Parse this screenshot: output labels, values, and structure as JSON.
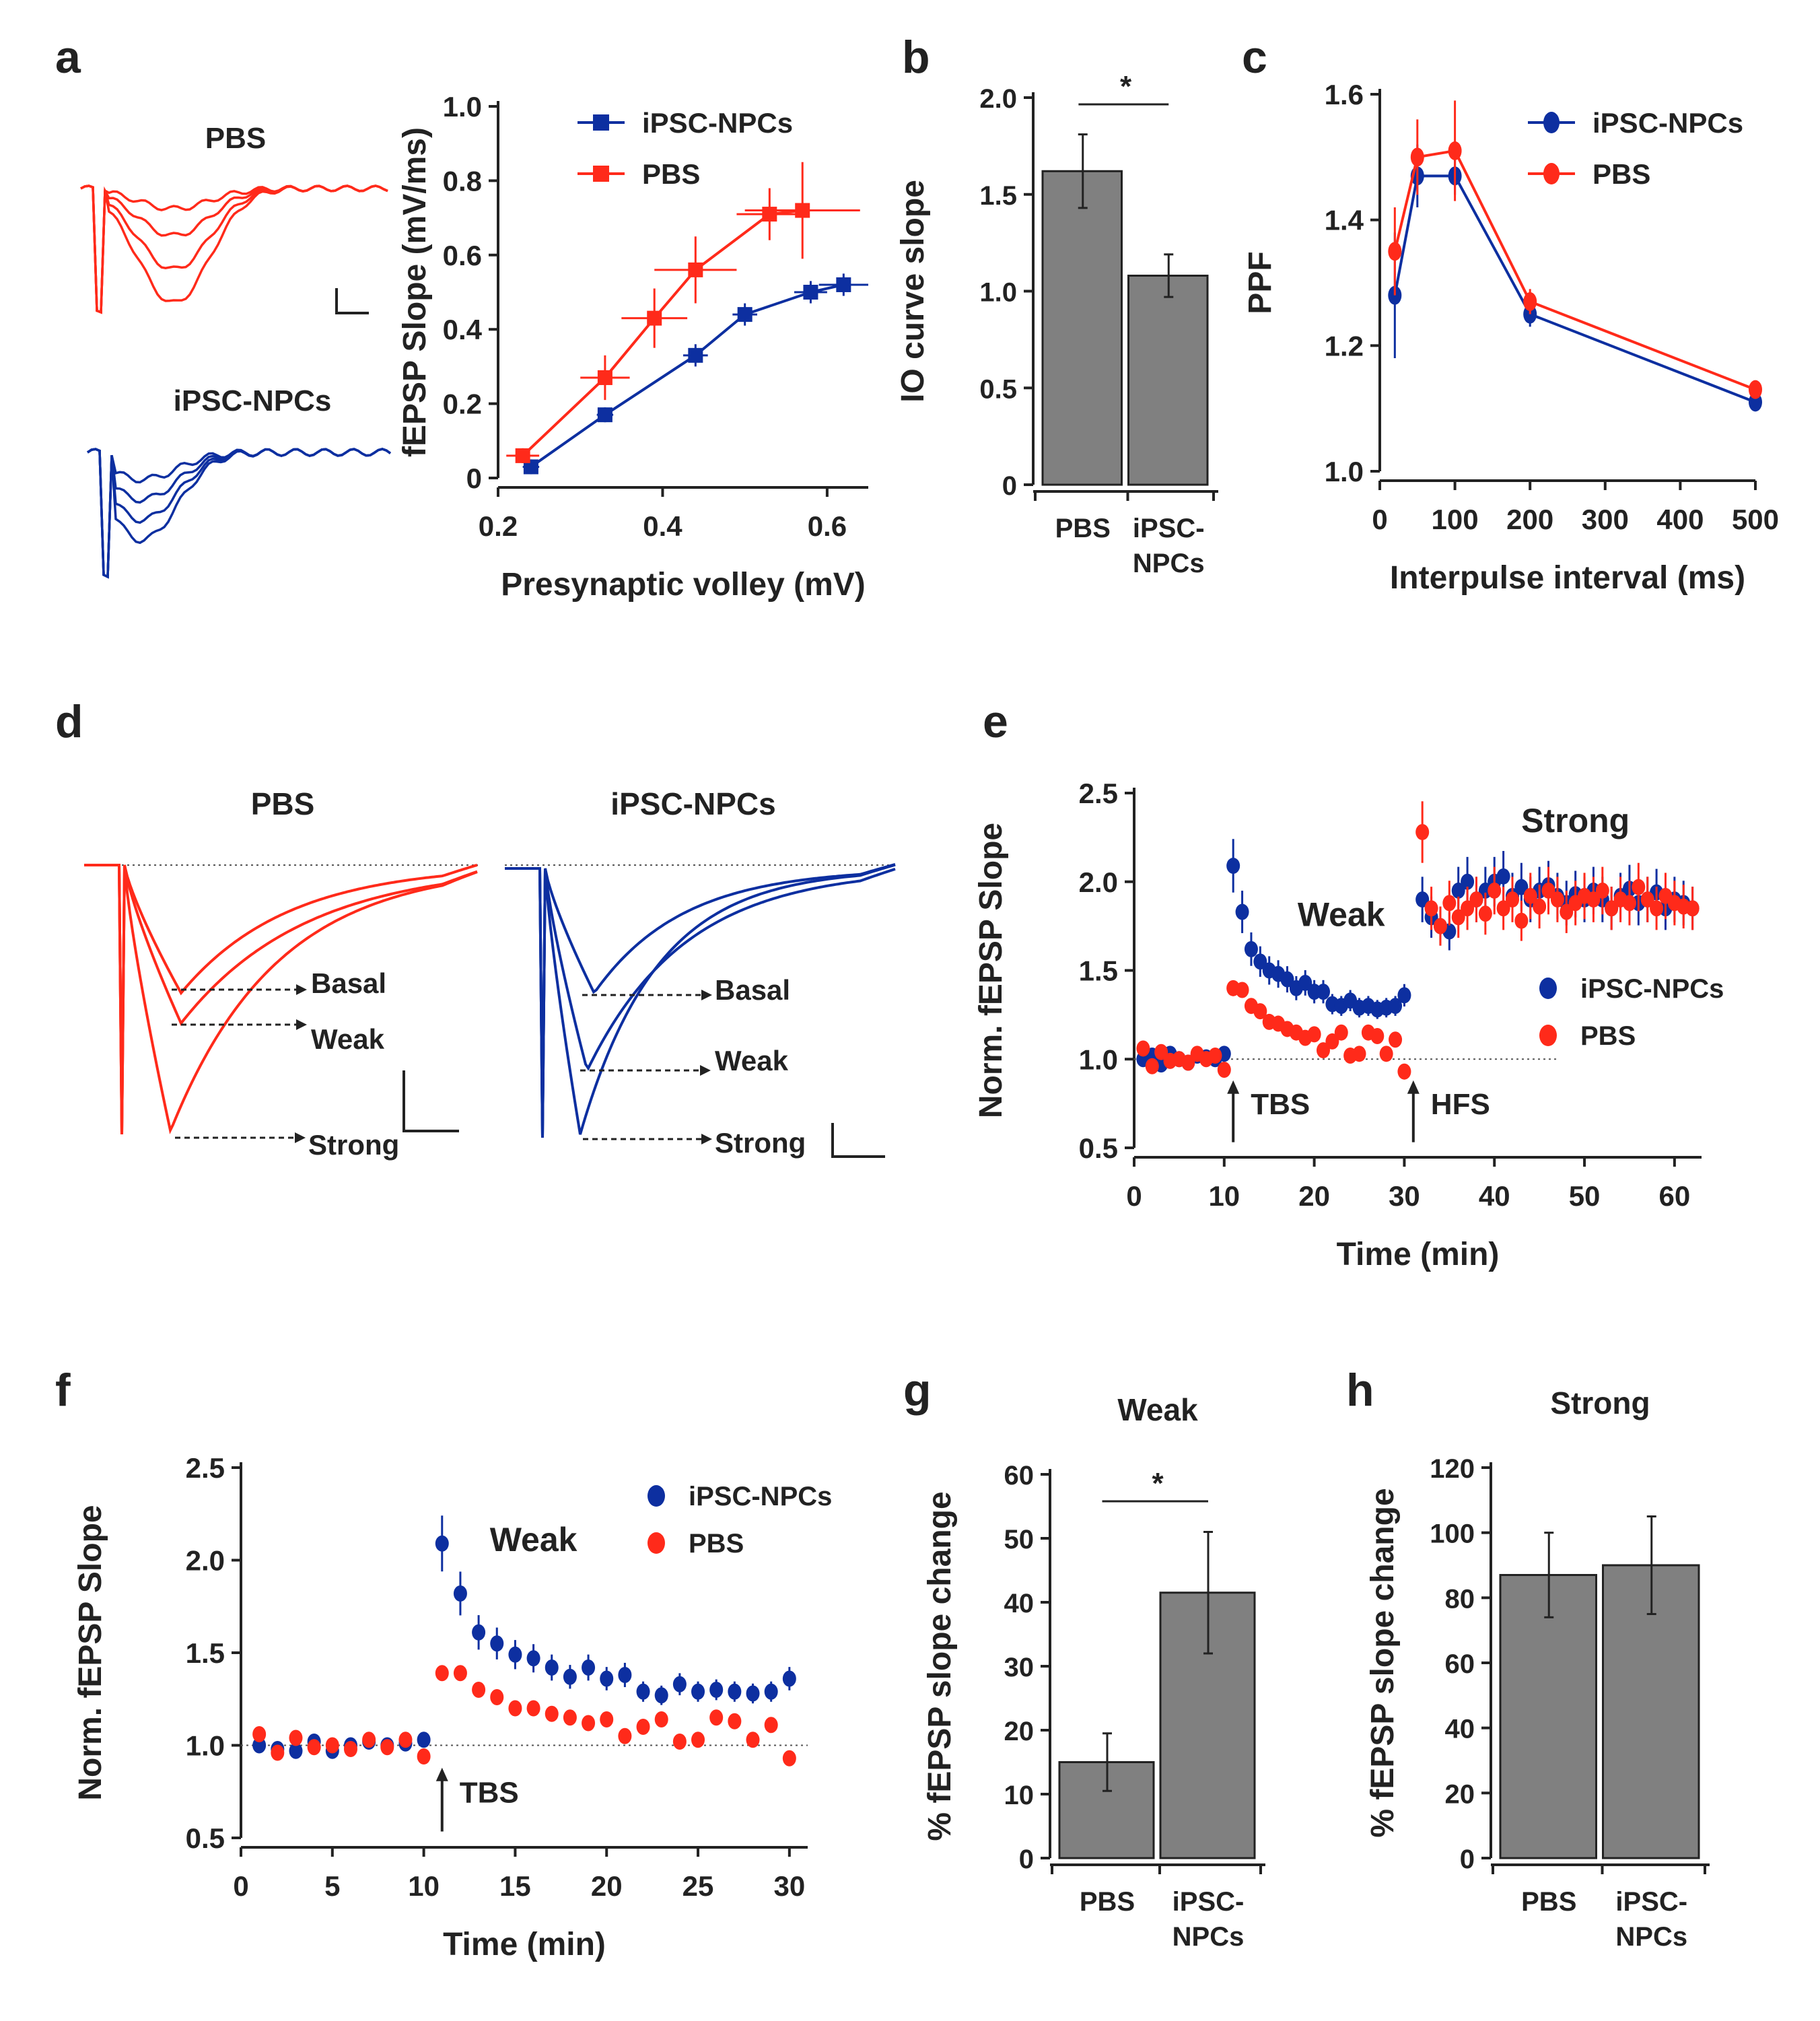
{
  "colors": {
    "pbs": "#ff2a1a",
    "ipsc": "#0d2fa0",
    "bar": "#808080",
    "axis": "#222222"
  },
  "panel_labels": [
    "a",
    "b",
    "c",
    "d",
    "e",
    "f",
    "g",
    "h"
  ],
  "trace_labels": {
    "a_pbs": "PBS",
    "a_ipsc": "iPSC-NPCs",
    "d_pbs": "PBS",
    "d_ipsc": "iPSC-NPCs",
    "basal": "Basal",
    "weak": "Weak",
    "strong": "Strong"
  },
  "chart_data": [
    {
      "id": "a",
      "type": "line",
      "xlabel": "Presynaptic volley (mV)",
      "ylabel": "fEPSP Slope (mV/ms)",
      "xlim": [
        0.2,
        0.65
      ],
      "ylim": [
        0,
        1.0
      ],
      "xticks": [
        "0.2",
        "0.4",
        "0.6"
      ],
      "yticks": [
        "0",
        "0.2",
        "0.4",
        "0.6",
        "0.8",
        "1.0"
      ],
      "xtick_values": [
        0.2,
        0.4,
        0.6
      ],
      "ytick_values": [
        0,
        0.2,
        0.4,
        0.6,
        0.8,
        1.0
      ],
      "series": [
        {
          "name": "iPSC-NPCs",
          "color_key": "ipsc",
          "x": [
            0.24,
            0.33,
            0.44,
            0.5,
            0.58,
            0.62
          ],
          "y": [
            0.03,
            0.17,
            0.33,
            0.44,
            0.5,
            0.52
          ],
          "xerr": [
            0.01,
            0.01,
            0.015,
            0.015,
            0.02,
            0.03
          ],
          "yerr": [
            0.02,
            0.02,
            0.03,
            0.03,
            0.03,
            0.03
          ]
        },
        {
          "name": "PBS",
          "color_key": "pbs",
          "x": [
            0.23,
            0.33,
            0.39,
            0.44,
            0.53,
            0.57
          ],
          "y": [
            0.06,
            0.27,
            0.43,
            0.56,
            0.71,
            0.72
          ],
          "xerr": [
            0.02,
            0.03,
            0.04,
            0.05,
            0.04,
            0.07
          ],
          "yerr": [
            0.02,
            0.06,
            0.08,
            0.09,
            0.07,
            0.13
          ]
        }
      ]
    },
    {
      "id": "b",
      "type": "bar",
      "ylabel": "IO curve slope",
      "categories": [
        "PBS",
        "iPSC-\nNPCs"
      ],
      "values": [
        1.62,
        1.08
      ],
      "errors": [
        0.19,
        0.11
      ],
      "ylim": [
        0,
        2.0
      ],
      "yticks": [
        "0",
        "0.5",
        "1.0",
        "1.5",
        "2.0"
      ],
      "ytick_values": [
        0,
        0.5,
        1.0,
        1.5,
        2.0
      ],
      "significance": "*"
    },
    {
      "id": "c",
      "type": "line",
      "xlabel": "Interpulse interval (ms)",
      "ylabel": "PPF",
      "xlim": [
        0,
        500
      ],
      "ylim": [
        1.0,
        1.6
      ],
      "xticks": [
        "0",
        "100",
        "200",
        "300",
        "400",
        "500"
      ],
      "xtick_values": [
        0,
        100,
        200,
        300,
        400,
        500
      ],
      "yticks": [
        "1.0",
        "1.2",
        "1.4",
        "1.6"
      ],
      "ytick_values": [
        1.0,
        1.2,
        1.4,
        1.6
      ],
      "series": [
        {
          "name": "iPSC-NPCs",
          "color_key": "ipsc",
          "x": [
            20,
            50,
            100,
            200,
            500
          ],
          "y": [
            1.28,
            1.47,
            1.47,
            1.25,
            1.11
          ],
          "yerr": [
            0.1,
            0.05,
            0.03,
            0.02,
            0.01
          ]
        },
        {
          "name": "PBS",
          "color_key": "pbs",
          "x": [
            20,
            50,
            100,
            200,
            500
          ],
          "y": [
            1.35,
            1.5,
            1.51,
            1.27,
            1.13
          ],
          "yerr": [
            0.07,
            0.06,
            0.08,
            0.02,
            0.01
          ]
        }
      ]
    },
    {
      "id": "e",
      "type": "scatter",
      "xlabel": "Time (min)",
      "ylabel": "Norm. fEPSP Slope",
      "xlim": [
        0,
        63
      ],
      "ylim": [
        0.5,
        2.5
      ],
      "xticks": [
        "0",
        "10",
        "20",
        "30",
        "40",
        "50",
        "60"
      ],
      "xtick_values": [
        0,
        10,
        20,
        30,
        40,
        50,
        60
      ],
      "yticks": [
        "0.5",
        "1.0",
        "1.5",
        "2.0",
        "2.5"
      ],
      "ytick_values": [
        0.5,
        1.0,
        1.5,
        2.0,
        2.5
      ],
      "annotations": [
        "TBS",
        "HFS",
        "Weak",
        "Strong"
      ],
      "series": [
        {
          "name": "iPSC-NPCs",
          "color_key": "ipsc",
          "x": [
            1,
            2,
            3,
            4,
            5,
            6,
            7,
            8,
            9,
            10,
            11,
            12,
            13,
            14,
            15,
            16,
            17,
            18,
            19,
            20,
            21,
            22,
            23,
            24,
            25,
            26,
            27,
            28,
            29,
            30,
            32,
            33,
            34,
            35,
            36,
            37,
            38,
            39,
            40,
            41,
            42,
            43,
            44,
            45,
            46,
            47,
            48,
            49,
            50,
            51,
            52,
            53,
            54,
            55,
            56,
            57,
            58,
            59,
            60,
            61,
            62
          ],
          "y": [
            1.0,
            1.02,
            0.97,
            1.03,
            1.0,
            0.98,
            1.02,
            1.01,
            1.0,
            1.03,
            2.09,
            1.83,
            1.62,
            1.55,
            1.5,
            1.48,
            1.45,
            1.4,
            1.43,
            1.38,
            1.38,
            1.31,
            1.3,
            1.33,
            1.29,
            1.3,
            1.28,
            1.29,
            1.3,
            1.36,
            1.9,
            1.8,
            1.75,
            1.72,
            1.95,
            2.0,
            1.9,
            1.95,
            2.0,
            2.03,
            1.92,
            1.97,
            1.9,
            1.95,
            1.98,
            1.92,
            1.88,
            1.93,
            1.9,
            1.95,
            1.9,
            1.85,
            1.92,
            1.96,
            1.88,
            1.9,
            1.94,
            1.85,
            1.9,
            1.88,
            1.85
          ]
        },
        {
          "name": "PBS",
          "color_key": "pbs",
          "x": [
            1,
            2,
            3,
            4,
            5,
            6,
            7,
            8,
            9,
            10,
            11,
            12,
            13,
            14,
            15,
            16,
            17,
            18,
            19,
            20,
            21,
            22,
            23,
            24,
            25,
            26,
            27,
            28,
            29,
            30,
            32,
            33,
            34,
            35,
            36,
            37,
            38,
            39,
            40,
            41,
            42,
            43,
            44,
            45,
            46,
            47,
            48,
            49,
            50,
            51,
            52,
            53,
            54,
            55,
            56,
            57,
            58,
            59,
            60,
            61,
            62
          ],
          "y": [
            1.06,
            0.96,
            1.04,
            0.99,
            1.0,
            0.98,
            1.03,
            1.0,
            1.02,
            0.94,
            1.4,
            1.39,
            1.3,
            1.27,
            1.21,
            1.2,
            1.17,
            1.15,
            1.12,
            1.14,
            1.05,
            1.1,
            1.15,
            1.02,
            1.03,
            1.15,
            1.13,
            1.03,
            1.11,
            0.93,
            2.28,
            1.85,
            1.75,
            1.88,
            1.8,
            1.85,
            1.9,
            1.82,
            1.95,
            1.85,
            1.9,
            1.78,
            1.92,
            1.86,
            1.95,
            1.9,
            1.83,
            1.88,
            1.92,
            1.9,
            1.95,
            1.85,
            1.9,
            1.88,
            1.97,
            1.9,
            1.85,
            1.92,
            1.88,
            1.86,
            1.85
          ]
        }
      ]
    },
    {
      "id": "f",
      "type": "scatter",
      "xlabel": "Time (min)",
      "ylabel": "Norm. fEPSP Slope",
      "xlim": [
        0,
        31
      ],
      "ylim": [
        0.5,
        2.5
      ],
      "xticks": [
        "0",
        "5",
        "10",
        "15",
        "20",
        "25",
        "30"
      ],
      "xtick_values": [
        0,
        5,
        10,
        15,
        20,
        25,
        30
      ],
      "yticks": [
        "0.5",
        "1.0",
        "1.5",
        "2.0",
        "2.5"
      ],
      "ytick_values": [
        0.5,
        1.0,
        1.5,
        2.0,
        2.5
      ],
      "annotations": [
        "TBS",
        "Weak"
      ],
      "series": [
        {
          "name": "iPSC-NPCs",
          "color_key": "ipsc",
          "x": [
            1,
            2,
            3,
            4,
            5,
            6,
            7,
            8,
            9,
            10,
            11,
            12,
            13,
            14,
            15,
            16,
            17,
            18,
            19,
            20,
            21,
            22,
            23,
            24,
            25,
            26,
            27,
            28,
            29,
            30
          ],
          "y": [
            1.0,
            0.98,
            0.97,
            1.02,
            0.97,
            1.0,
            1.02,
            1.0,
            1.01,
            1.03,
            2.09,
            1.82,
            1.61,
            1.55,
            1.49,
            1.47,
            1.42,
            1.37,
            1.42,
            1.36,
            1.38,
            1.29,
            1.27,
            1.33,
            1.29,
            1.3,
            1.29,
            1.28,
            1.29,
            1.36
          ]
        },
        {
          "name": "PBS",
          "color_key": "pbs",
          "x": [
            1,
            2,
            3,
            4,
            5,
            6,
            7,
            8,
            9,
            10,
            11,
            12,
            13,
            14,
            15,
            16,
            17,
            18,
            19,
            20,
            21,
            22,
            23,
            24,
            25,
            26,
            27,
            28,
            29,
            30
          ],
          "y": [
            1.06,
            0.96,
            1.04,
            0.99,
            1.0,
            0.98,
            1.03,
            0.99,
            1.03,
            0.94,
            1.39,
            1.39,
            1.3,
            1.26,
            1.2,
            1.2,
            1.17,
            1.15,
            1.12,
            1.14,
            1.05,
            1.1,
            1.14,
            1.02,
            1.03,
            1.15,
            1.13,
            1.03,
            1.11,
            0.93
          ]
        }
      ]
    },
    {
      "id": "g",
      "type": "bar",
      "title": "Weak",
      "ylabel": "% fEPSP slope change",
      "categories": [
        "PBS",
        "iPSC-\nNPCs"
      ],
      "values": [
        15,
        41.5
      ],
      "errors": [
        4.5,
        9.5
      ],
      "ylim": [
        0,
        60
      ],
      "yticks": [
        "0",
        "10",
        "20",
        "30",
        "40",
        "50",
        "60"
      ],
      "ytick_values": [
        0,
        10,
        20,
        30,
        40,
        50,
        60
      ],
      "significance": "*"
    },
    {
      "id": "h",
      "type": "bar",
      "title": "Strong",
      "ylabel": "% fEPSP slope change",
      "categories": [
        "PBS",
        "iPSC-\nNPCs"
      ],
      "values": [
        87,
        90
      ],
      "errors": [
        13,
        15
      ],
      "ylim": [
        0,
        120
      ],
      "yticks": [
        "0",
        "20",
        "40",
        "60",
        "80",
        "100",
        "120"
      ],
      "ytick_values": [
        0,
        20,
        40,
        60,
        80,
        100,
        120
      ]
    }
  ]
}
